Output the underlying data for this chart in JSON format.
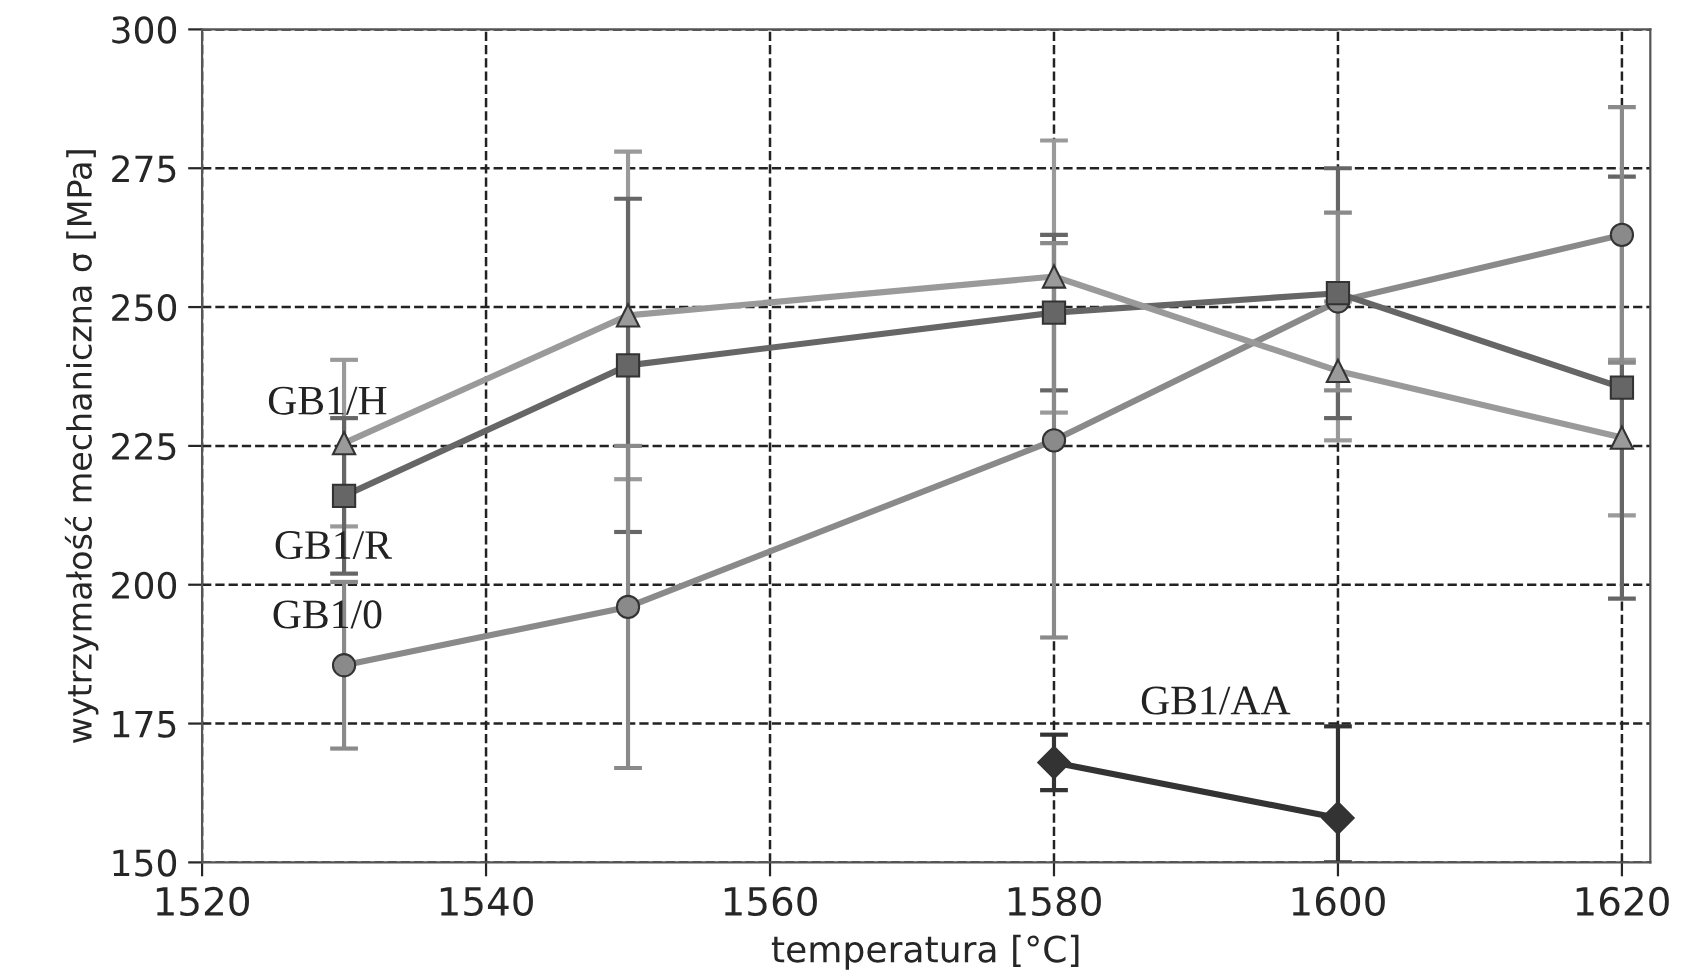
{
  "chart_data": {
    "type": "line",
    "xlabel": "temperatura [°C]",
    "ylabel": "wytrzymałość mechaniczna σ [MPa]",
    "xlim": [
      1520,
      1622
    ],
    "xticks": [
      1520,
      1540,
      1560,
      1580,
      1600,
      1620
    ],
    "ylim": [
      150,
      300
    ],
    "yticks": [
      150,
      175,
      200,
      225,
      250,
      275,
      300
    ],
    "grid": true,
    "legend": false,
    "line_style": "solid",
    "series": [
      {
        "name": "GB1/H",
        "color": "#9a9a9a",
        "marker": "triangle",
        "x": [
          1530,
          1550,
          1580,
          1600,
          1620
        ],
        "values": [
          225.5,
          248.5,
          255.5,
          238.5,
          226.5
        ],
        "errors": [
          15,
          29.5,
          24.5,
          12.5,
          14
        ]
      },
      {
        "name": "GB1/R",
        "color": "#666666",
        "marker": "square",
        "x": [
          1530,
          1550,
          1580,
          1600,
          1620
        ],
        "values": [
          216,
          239.5,
          249,
          252.5,
          235.5
        ],
        "errors": [
          14,
          30,
          14,
          22.5,
          38
        ]
      },
      {
        "name": "GB1/0",
        "color": "#8a8a8a",
        "marker": "circle",
        "x": [
          1530,
          1550,
          1580,
          1600,
          1620
        ],
        "values": [
          185.5,
          196,
          226,
          251,
          263
        ],
        "errors": [
          15,
          29,
          35.5,
          16,
          23
        ]
      },
      {
        "name": "GB1/AA",
        "color": "#333333",
        "marker": "diamond",
        "x": [
          1580,
          1600
        ],
        "values": [
          168,
          158
        ],
        "errors": [
          5,
          [
            150,
            174.5
          ]
        ]
      }
    ]
  }
}
